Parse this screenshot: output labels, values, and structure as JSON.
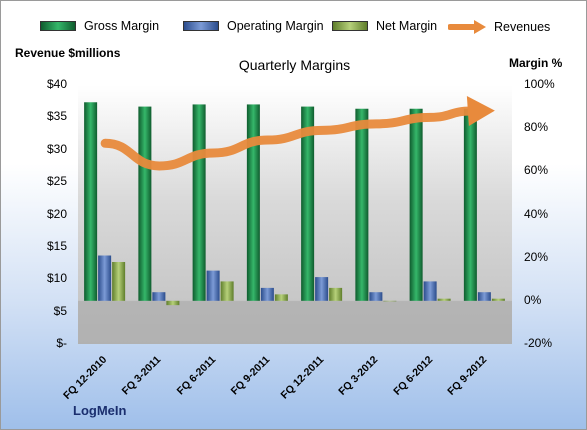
{
  "chart_data": {
    "type": "bar",
    "title": "Quarterly Margins",
    "company": "LogMeIn",
    "categories": [
      "FQ 12-2010",
      "FQ 3-2011",
      "FQ 6-2011",
      "FQ 9-2011",
      "FQ 12-2011",
      "FQ 3-2012",
      "FQ 6-2012",
      "FQ 9-2012"
    ],
    "series": [
      {
        "name": "Gross Margin",
        "axis": "right",
        "values": [
          92,
          90,
          91,
          91,
          90,
          89,
          89,
          89
        ],
        "color": "#1f8a4a"
      },
      {
        "name": "Operating Margin",
        "axis": "right",
        "values": [
          21,
          4,
          14,
          6,
          11,
          4,
          9,
          4
        ],
        "color": "#4a6fb5"
      },
      {
        "name": "Net Margin",
        "axis": "right",
        "values": [
          18,
          -2,
          9,
          3,
          6,
          0,
          1,
          1
        ],
        "color": "#8fae4e"
      },
      {
        "name": "Revenues",
        "axis": "left",
        "type": "line",
        "values": [
          31.0,
          27.5,
          29.5,
          31.5,
          33.0,
          34.0,
          35.0,
          36.2
        ],
        "color": "#e88a3c"
      }
    ],
    "left_axis": {
      "label": "Revenue $millions",
      "ylim": [
        0,
        40
      ],
      "ticks": [
        "$-",
        "$5",
        "$10",
        "$15",
        "$20",
        "$25",
        "$30",
        "$35",
        "$40"
      ]
    },
    "right_axis": {
      "label": "Margin %",
      "ylim": [
        -20,
        100
      ],
      "ticks": [
        "-20%",
        "0%",
        "20%",
        "40%",
        "60%",
        "80%",
        "100%"
      ]
    },
    "legend_position": "top",
    "grid": false
  }
}
